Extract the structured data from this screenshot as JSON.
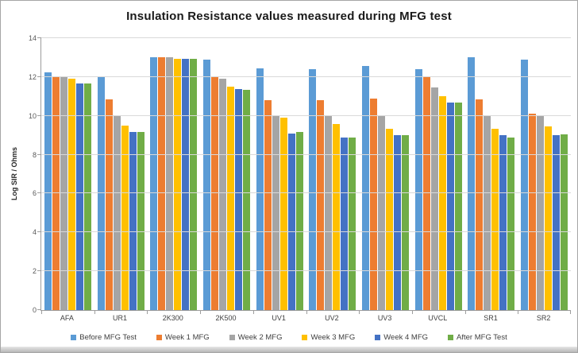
{
  "chart_data": {
    "type": "bar",
    "title": "Insulation Resistance values measured during MFG test",
    "xlabel": "",
    "ylabel": "Log SIR / Ohms",
    "ylim": [
      0,
      14
    ],
    "yticks": [
      0,
      2,
      4,
      6,
      8,
      10,
      12,
      14
    ],
    "grid": true,
    "legend_position": "bottom",
    "categories": [
      "AFA",
      "UR1",
      "2K300",
      "2K500",
      "UV1",
      "UV2",
      "UV3",
      "UVCL",
      "SR1",
      "SR2"
    ],
    "series": [
      {
        "name": "Before MFG Test",
        "color": "#5B9BD5",
        "values": [
          12.25,
          12.0,
          13.0,
          12.9,
          12.45,
          12.4,
          12.55,
          12.4,
          13.0,
          12.9
        ]
      },
      {
        "name": "Week 1 MFG",
        "color": "#ED7D31",
        "values": [
          12.05,
          10.85,
          13.0,
          12.0,
          10.8,
          10.8,
          10.9,
          12.0,
          10.85,
          10.1
        ]
      },
      {
        "name": "Week 2 MFG",
        "color": "#A5A5A5",
        "values": [
          12.0,
          10.05,
          13.0,
          11.9,
          10.0,
          10.0,
          10.0,
          11.45,
          10.0,
          10.05
        ]
      },
      {
        "name": "Week 3 MFG",
        "color": "#FFC000",
        "values": [
          11.9,
          9.5,
          12.95,
          11.5,
          9.9,
          9.6,
          9.35,
          11.0,
          9.35,
          9.45
        ]
      },
      {
        "name": "Week 4 MFG",
        "color": "#4472C4",
        "values": [
          11.65,
          9.15,
          12.95,
          11.4,
          9.1,
          8.9,
          9.0,
          10.7,
          9.0,
          9.0
        ]
      },
      {
        "name": "After MFG Test",
        "color": "#70AD47",
        "values": [
          11.65,
          9.15,
          12.95,
          11.35,
          9.15,
          8.9,
          9.0,
          10.7,
          8.9,
          9.05
        ]
      }
    ]
  }
}
